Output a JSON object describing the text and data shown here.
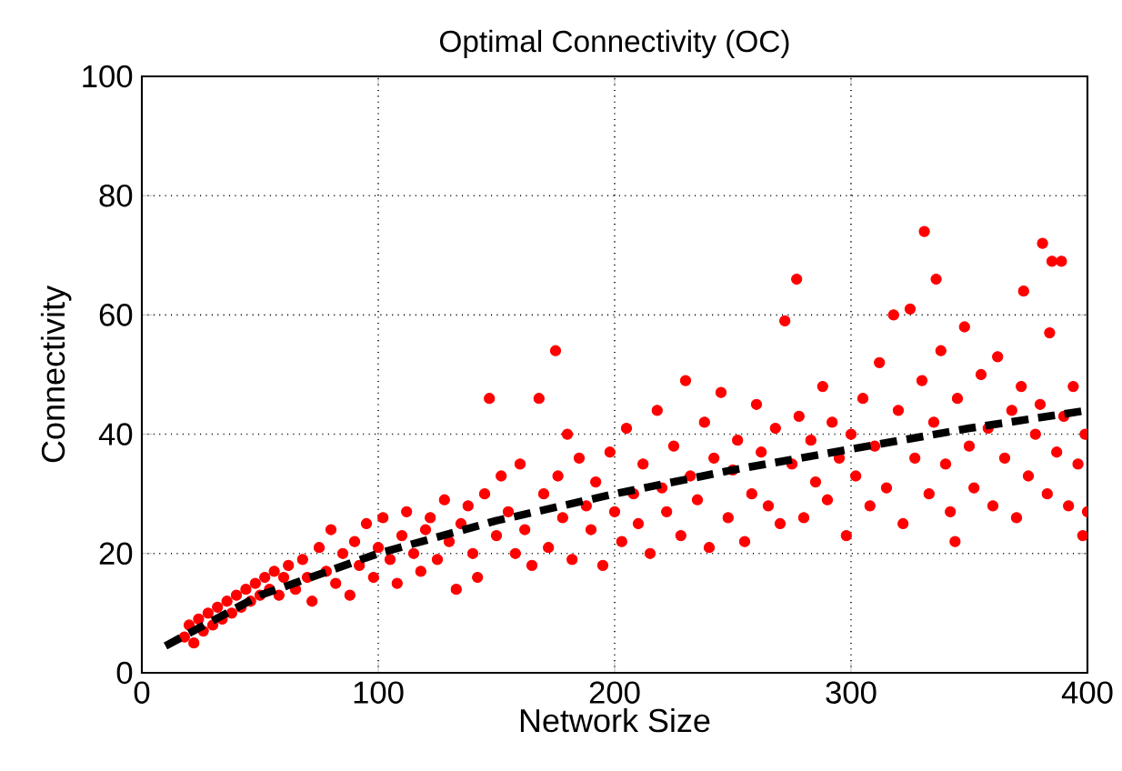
{
  "chart_data": {
    "type": "scatter",
    "title": "Optimal Connectivity (OC)",
    "xlabel": "Network Size",
    "ylabel": "Connectivity",
    "xlim": [
      0,
      400
    ],
    "ylim": [
      0,
      100
    ],
    "xticks": [
      0,
      100,
      200,
      300,
      400
    ],
    "yticks": [
      0,
      20,
      40,
      60,
      80,
      100
    ],
    "grid": true,
    "series": [
      {
        "type": "scatter",
        "color": "#ff0000",
        "marker": "circle",
        "x": [
          18,
          20,
          22,
          24,
          26,
          28,
          30,
          32,
          34,
          36,
          38,
          40,
          42,
          44,
          46,
          48,
          50,
          52,
          54,
          56,
          58,
          60,
          62,
          65,
          68,
          70,
          72,
          75,
          78,
          80,
          82,
          85,
          88,
          90,
          92,
          95,
          98,
          100,
          102,
          105,
          108,
          110,
          112,
          115,
          118,
          120,
          122,
          125,
          128,
          130,
          133,
          135,
          138,
          140,
          142,
          145,
          147,
          150,
          152,
          155,
          158,
          160,
          162,
          165,
          168,
          170,
          172,
          175,
          176,
          178,
          180,
          182,
          185,
          188,
          190,
          192,
          195,
          198,
          200,
          203,
          205,
          208,
          210,
          212,
          215,
          218,
          220,
          222,
          225,
          228,
          230,
          232,
          235,
          238,
          240,
          242,
          245,
          248,
          250,
          252,
          255,
          258,
          260,
          262,
          265,
          268,
          270,
          272,
          275,
          277,
          278,
          280,
          283,
          285,
          288,
          290,
          292,
          295,
          298,
          300,
          302,
          305,
          308,
          310,
          312,
          315,
          318,
          320,
          322,
          325,
          327,
          330,
          331,
          333,
          335,
          336,
          338,
          340,
          342,
          344,
          345,
          348,
          350,
          352,
          355,
          358,
          360,
          362,
          365,
          368,
          370,
          372,
          373,
          375,
          378,
          380,
          381,
          383,
          384,
          385,
          387,
          389,
          390,
          392,
          394,
          396,
          398,
          399,
          400
        ],
        "values": [
          6,
          8,
          5,
          9,
          7,
          10,
          8,
          11,
          9,
          12,
          10,
          13,
          11,
          14,
          12,
          15,
          13,
          16,
          14,
          17,
          13,
          16,
          18,
          14,
          19,
          16,
          12,
          21,
          17,
          24,
          15,
          20,
          13,
          22,
          18,
          25,
          16,
          21,
          26,
          19,
          15,
          23,
          27,
          20,
          17,
          24,
          26,
          19,
          29,
          22,
          14,
          25,
          28,
          20,
          16,
          30,
          46,
          23,
          33,
          27,
          20,
          35,
          24,
          18,
          46,
          30,
          21,
          54,
          33,
          26,
          40,
          19,
          36,
          28,
          24,
          32,
          18,
          37,
          27,
          22,
          41,
          30,
          25,
          35,
          20,
          44,
          31,
          27,
          38,
          23,
          49,
          33,
          29,
          42,
          21,
          36,
          47,
          26,
          34,
          39,
          22,
          30,
          45,
          37,
          28,
          41,
          25,
          59,
          35,
          66,
          43,
          26,
          39,
          32,
          48,
          29,
          42,
          36,
          23,
          40,
          33,
          46,
          28,
          38,
          52,
          31,
          60,
          44,
          25,
          61,
          36,
          49,
          74,
          30,
          42,
          66,
          54,
          35,
          27,
          22,
          46,
          58,
          38,
          31,
          50,
          41,
          28,
          53,
          36,
          44,
          26,
          48,
          64,
          33,
          40,
          45,
          72,
          30,
          57,
          69,
          37,
          69,
          43,
          28,
          48,
          35,
          23,
          40,
          27
        ]
      },
      {
        "type": "line",
        "color": "#000000",
        "line_style": "dashed",
        "marker": "none",
        "x": [
          10,
          50,
          100,
          150,
          200,
          250,
          300,
          350,
          400
        ],
        "values": [
          4.5,
          13,
          20,
          25.5,
          30,
          34,
          37.5,
          41,
          44
        ]
      }
    ]
  }
}
